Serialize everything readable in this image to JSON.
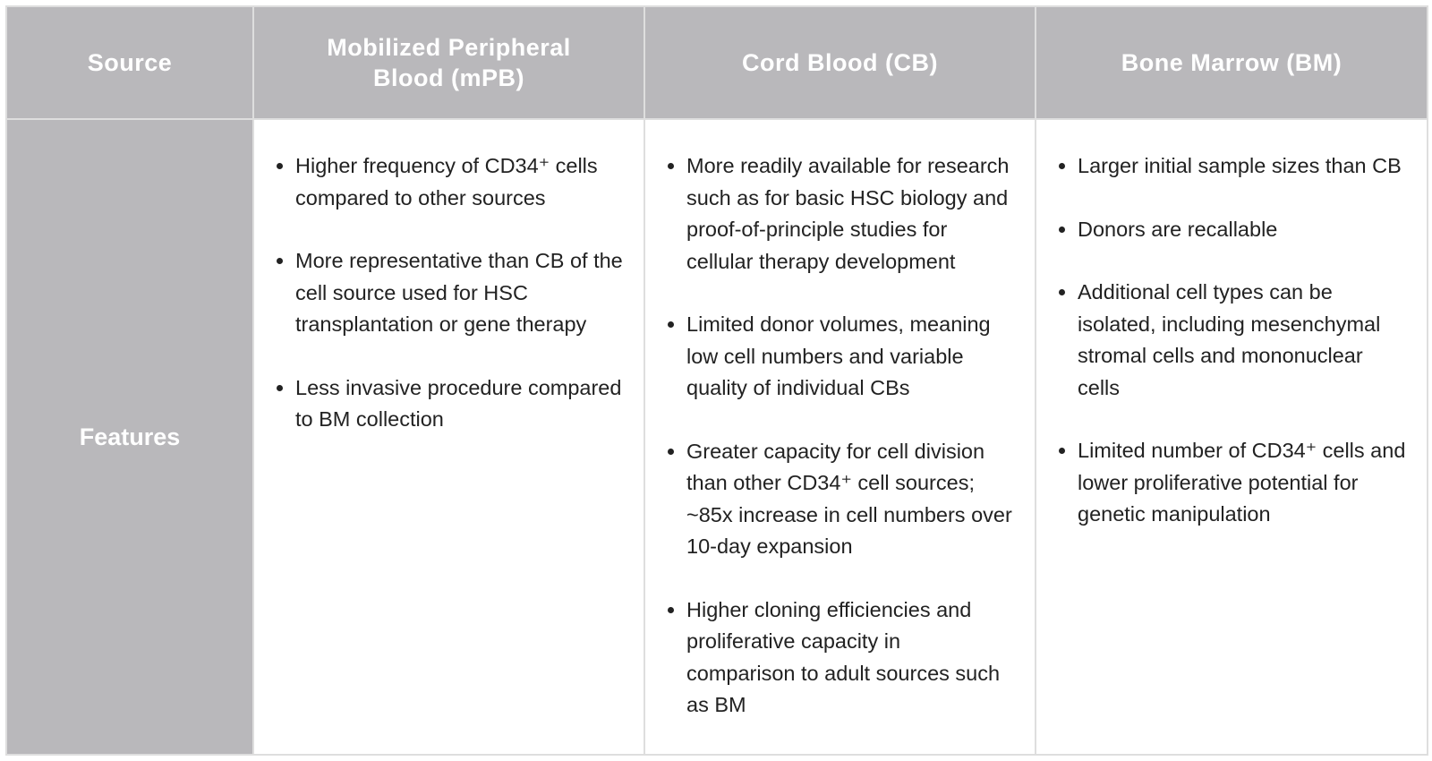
{
  "table": {
    "header": [
      "Source",
      "Mobilized Peripheral Blood (mPB)",
      "Cord Blood (CB)",
      "Bone Marrow (BM)"
    ],
    "rows": [
      {
        "label": "Features",
        "cells": [
          {
            "items": [
              "Higher frequency of CD34⁺ cells compared to other sources",
              "More representative than CB of the cell source used for HSC transplantation or gene therapy",
              "Less invasive procedure compared to BM collection"
            ]
          },
          {
            "items": [
              "More readily available for research such as for basic HSC biology and proof-of-principle studies for cellular therapy development",
              "Limited donor volumes, meaning low cell numbers and variable quality of individual CBs",
              "Greater capacity for cell division than other CD34⁺ cell sources; ~85x increase in cell numbers over 10-day expansion",
              "Higher cloning efficiencies and proliferative capacity in comparison to adult sources such as BM"
            ]
          },
          {
            "items": [
              "Larger initial sample sizes than CB",
              "Donors are recallable",
              "Additional cell types can be isolated, including mesenchymal stromal cells and mononuclear cells",
              "Limited number of CD34⁺ cells and lower proliferative potential for genetic manipulation"
            ]
          }
        ]
      }
    ]
  }
}
